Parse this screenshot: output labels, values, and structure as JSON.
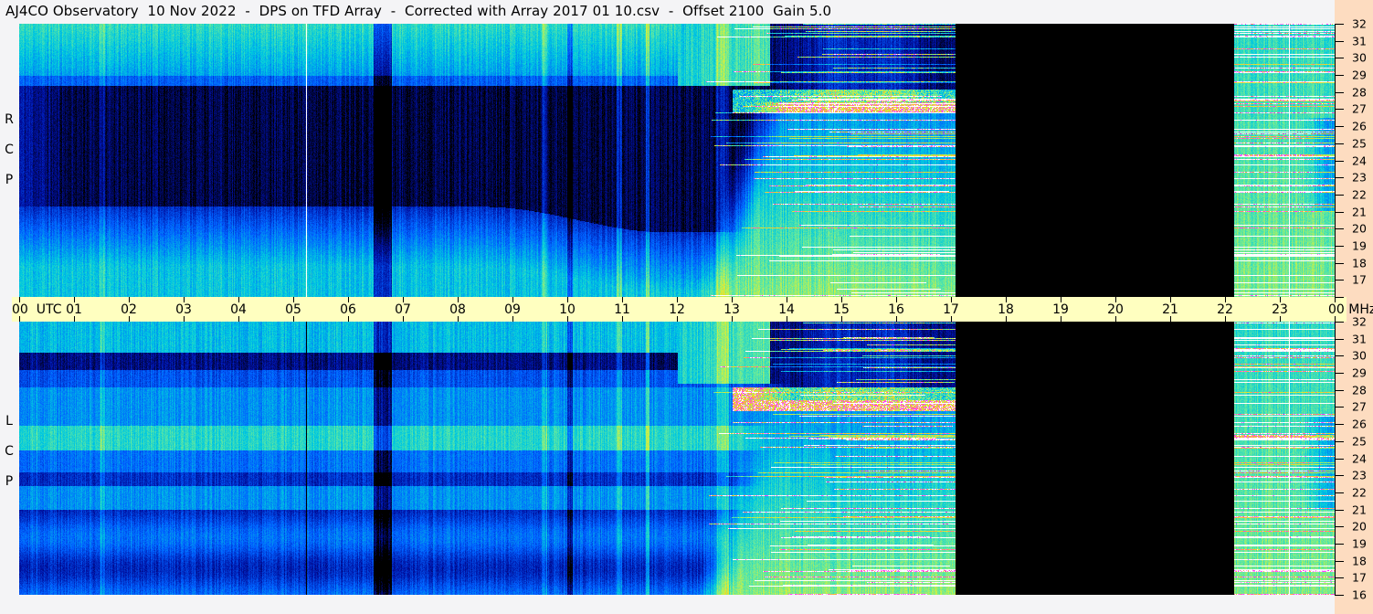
{
  "title": "AJ4CO Observatory  10 Nov 2022  -  DPS on TFD Array  -  Corrected with Array 2017 01 10.csv  -  Offset 2100  Gain 5.0",
  "panels": [
    {
      "id": "rcp",
      "label": [
        "R",
        "C",
        "P"
      ]
    },
    {
      "id": "lcp",
      "label": [
        "L",
        "C",
        "P"
      ]
    }
  ],
  "time_axis": {
    "labels": [
      "00  UTC",
      "01",
      "02",
      "03",
      "04",
      "05",
      "06",
      "07",
      "08",
      "09",
      "10",
      "11",
      "12",
      "13",
      "14",
      "15",
      "16",
      "17",
      "18",
      "19",
      "20",
      "21",
      "22",
      "23",
      "00 MHz"
    ]
  },
  "freq_axis": {
    "labels": [
      "32",
      "31",
      "30",
      "29",
      "28",
      "27",
      "26",
      "25",
      "24",
      "23",
      "22",
      "21",
      "20",
      "19",
      "18",
      "17",
      "16"
    ]
  },
  "colors": {
    "background": "#f4f4f6",
    "time_band": "#ffffc0",
    "scale_band": "#fddcc0",
    "no_data": "#000000"
  },
  "chart_data": {
    "type": "heatmap",
    "title": "AJ4CO Observatory  10 Nov 2022  -  DPS on TFD Array  -  Corrected with Array 2017 01 10.csv  -  Offset 2100  Gain 5.0",
    "xlabel": "UTC",
    "ylabel": "MHz",
    "x_range_hours": [
      0,
      24
    ],
    "y_range_mhz": [
      16,
      32
    ],
    "series": [
      {
        "name": "R C P"
      },
      {
        "name": "L C P"
      }
    ],
    "no_data_interval_utc": [
      "17:05",
      "22:10"
    ],
    "colormap": [
      "#000010",
      "#0010a0",
      "#0060ff",
      "#00c8e0",
      "#60e8a0",
      "#d0f040",
      "#ffc020",
      "#ff30ff",
      "#ffffff"
    ],
    "grid": false
  }
}
